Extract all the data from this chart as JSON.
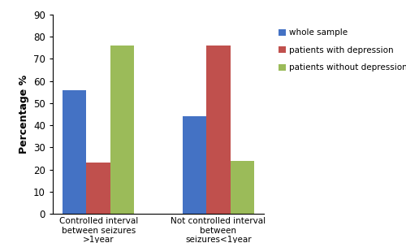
{
  "categories": [
    "Controlled interval\nbetween seizures\n>1year",
    "Not controlled interval\nbetween\nseizures<1year"
  ],
  "series": {
    "whole sample": [
      56,
      44
    ],
    "patients with depression": [
      23,
      76
    ],
    "patients without depression": [
      76,
      24
    ]
  },
  "colors": {
    "whole sample": "#4472C4",
    "patients with depression": "#C0504D",
    "patients without depression": "#9BBB59"
  },
  "ylabel": "Percentage %",
  "ylim": [
    0,
    90
  ],
  "yticks": [
    0,
    10,
    20,
    30,
    40,
    50,
    60,
    70,
    80,
    90
  ],
  "legend_labels": [
    "whole sample",
    "patients with depression",
    "patients without depression"
  ],
  "bar_width": 0.2,
  "figsize": [
    5.0,
    2.99
  ],
  "dpi": 100
}
